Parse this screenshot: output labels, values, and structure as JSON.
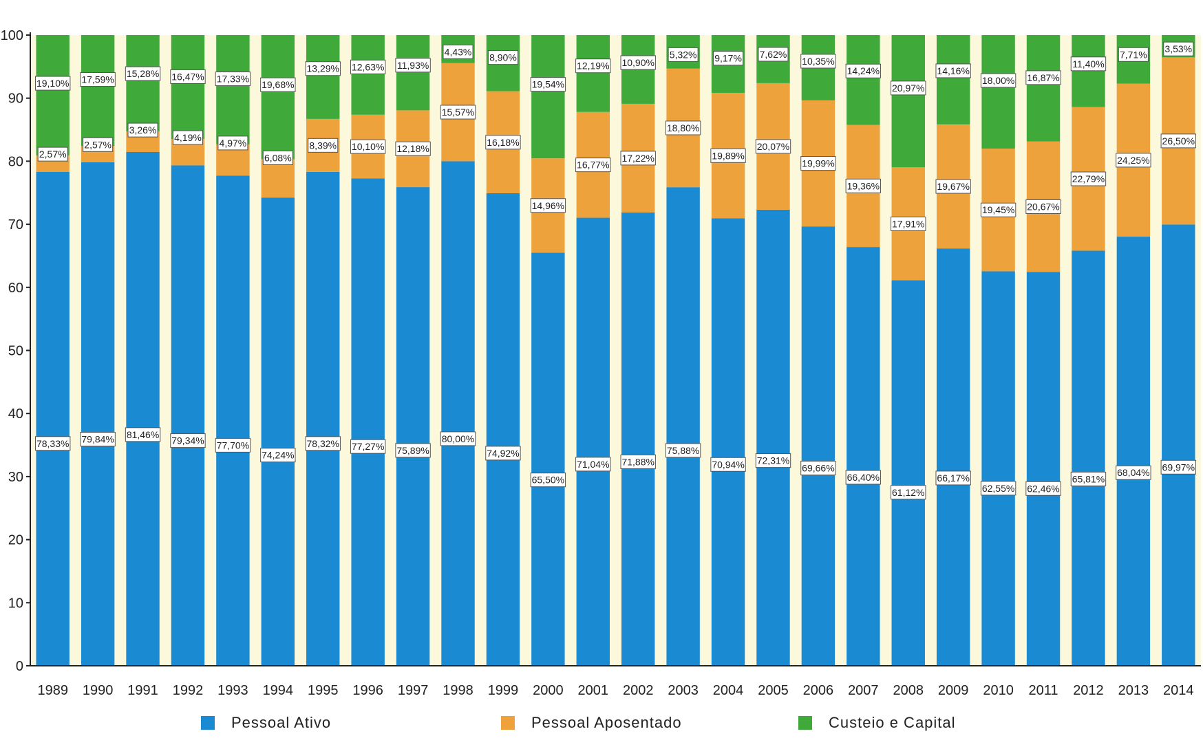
{
  "chart_data": {
    "type": "bar",
    "stacked": true,
    "percent_stacked": true,
    "title": "",
    "xlabel": "",
    "ylabel": "",
    "ylim": [
      0,
      100
    ],
    "y_tick_labels": [
      "0",
      "10",
      "20",
      "30",
      "40",
      "50",
      "60",
      "70",
      "80",
      "90",
      "100"
    ],
    "grid": false,
    "legend_position": "bottom",
    "categories": [
      "1989",
      "1990",
      "1991",
      "1992",
      "1993",
      "1994",
      "1995",
      "1996",
      "1997",
      "1998",
      "1999",
      "2000",
      "2001",
      "2002",
      "2003",
      "2004",
      "2005",
      "2006",
      "2007",
      "2008",
      "2009",
      "2010",
      "2011",
      "2012",
      "2013",
      "2014"
    ],
    "series": [
      {
        "name": "Pessoal Ativo",
        "color": "#1a8ad3",
        "values": [
          78.33,
          79.84,
          81.46,
          79.34,
          77.7,
          74.24,
          78.32,
          77.27,
          75.89,
          80.0,
          74.92,
          65.5,
          71.04,
          71.88,
          75.88,
          70.94,
          72.31,
          69.66,
          66.4,
          61.12,
          66.17,
          62.55,
          62.46,
          65.81,
          68.04,
          69.97
        ],
        "labels": [
          "78,33%",
          "79,84%",
          "81,46%",
          "79,34%",
          "77,70%",
          "74,24%",
          "78,32%",
          "77,27%",
          "75,89%",
          "80,00%",
          "74,92%",
          "65,50%",
          "71,04%",
          "71,88%",
          "75,88%",
          "70,94%",
          "72,31%",
          "69,66%",
          "66,40%",
          "61,12%",
          "66,17%",
          "62,55%",
          "62,46%",
          "65,81%",
          "68,04%",
          "69,97%"
        ]
      },
      {
        "name": "Pessoal Aposentado",
        "color": "#eea23c",
        "values": [
          2.57,
          2.57,
          3.26,
          4.19,
          4.97,
          6.08,
          8.39,
          10.1,
          12.18,
          15.57,
          16.18,
          14.96,
          16.77,
          17.22,
          18.8,
          19.89,
          20.07,
          19.99,
          19.36,
          17.91,
          19.67,
          19.45,
          20.67,
          22.79,
          24.25,
          26.5
        ],
        "labels": [
          "2,57%",
          "2,57%",
          "3,26%",
          "4,19%",
          "4,97%",
          "6,08%",
          "8,39%",
          "10,10%",
          "12,18%",
          "15,57%",
          "16,18%",
          "14,96%",
          "16,77%",
          "17,22%",
          "18,80%",
          "19,89%",
          "20,07%",
          "19,99%",
          "19,36%",
          "17,91%",
          "19,67%",
          "19,45%",
          "20,67%",
          "22,79%",
          "24,25%",
          "26,50%"
        ]
      },
      {
        "name": "Custeio e Capital",
        "color": "#3fa93a",
        "values": [
          19.1,
          17.59,
          15.28,
          16.47,
          17.33,
          19.68,
          13.29,
          12.63,
          11.93,
          4.43,
          8.9,
          19.54,
          12.19,
          10.9,
          5.32,
          9.17,
          7.62,
          10.35,
          14.24,
          20.97,
          14.16,
          18.0,
          16.87,
          11.4,
          7.71,
          3.53
        ],
        "labels": [
          "19,10%",
          "17,59%",
          "15,28%",
          "16,47%",
          "17,33%",
          "19,68%",
          "13,29%",
          "12,63%",
          "11,93%",
          "4,43%",
          "8,90%",
          "19,54%",
          "12,19%",
          "10,90%",
          "5,32%",
          "9,17%",
          "7,62%",
          "10,35%",
          "14,24%",
          "20,97%",
          "14,16%",
          "18,00%",
          "16,87%",
          "11,40%",
          "7,71%",
          "3,53%"
        ]
      }
    ]
  },
  "legend": {
    "items": [
      {
        "label": "Pessoal  Ativo",
        "color": "#1a8ad3"
      },
      {
        "label": "Pessoal  Aposentado",
        "color": "#eea23c"
      },
      {
        "label": "Custeio  e  Capital",
        "color": "#3fa93a"
      }
    ]
  },
  "colors": {
    "gap_background": "#fbf8dc",
    "axis": "#222222",
    "label_box_fill": "#ffffff",
    "label_box_stroke": "#555555"
  }
}
